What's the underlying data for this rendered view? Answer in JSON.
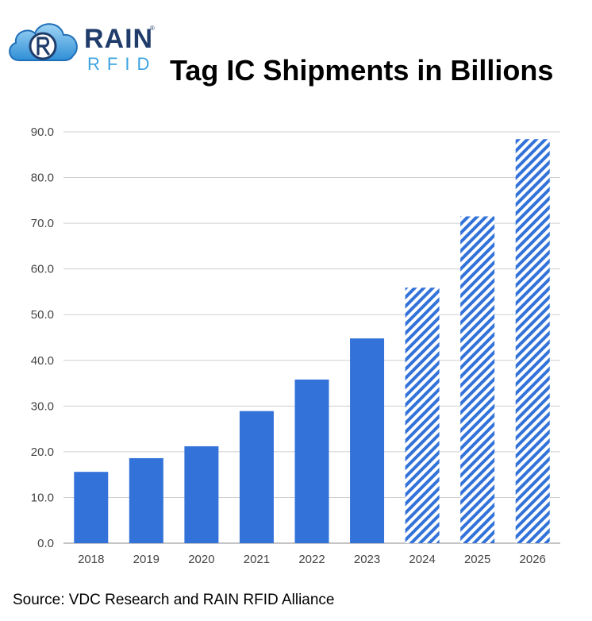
{
  "logo": {
    "brand_main": "RAIN",
    "brand_sub": "RFID",
    "registered_mark": "®",
    "icon": "cloud-r-icon",
    "color_dark": "#1f3c6b",
    "color_light": "#3ba3e0"
  },
  "chart_data": {
    "type": "bar",
    "title": "Tag IC Shipments in Billions",
    "xlabel": "",
    "ylabel": "",
    "categories": [
      "2018",
      "2019",
      "2020",
      "2021",
      "2022",
      "2023",
      "2024",
      "2025",
      "2026"
    ],
    "values": [
      15.6,
      18.6,
      21.2,
      28.9,
      35.8,
      44.8,
      55.9,
      71.5,
      88.4
    ],
    "forecast": [
      false,
      false,
      false,
      false,
      false,
      false,
      true,
      true,
      true
    ],
    "ylim": [
      0,
      90
    ],
    "yticks": [
      "0.0",
      "10.0",
      "20.0",
      "30.0",
      "40.0",
      "50.0",
      "60.0",
      "70.0",
      "80.0",
      "90.0"
    ],
    "grid": true,
    "legend": "none",
    "bar_color": "#3272d9",
    "grid_color": "#cfcfcf"
  },
  "source_text": "Source: VDC Research and RAIN RFID Alliance"
}
